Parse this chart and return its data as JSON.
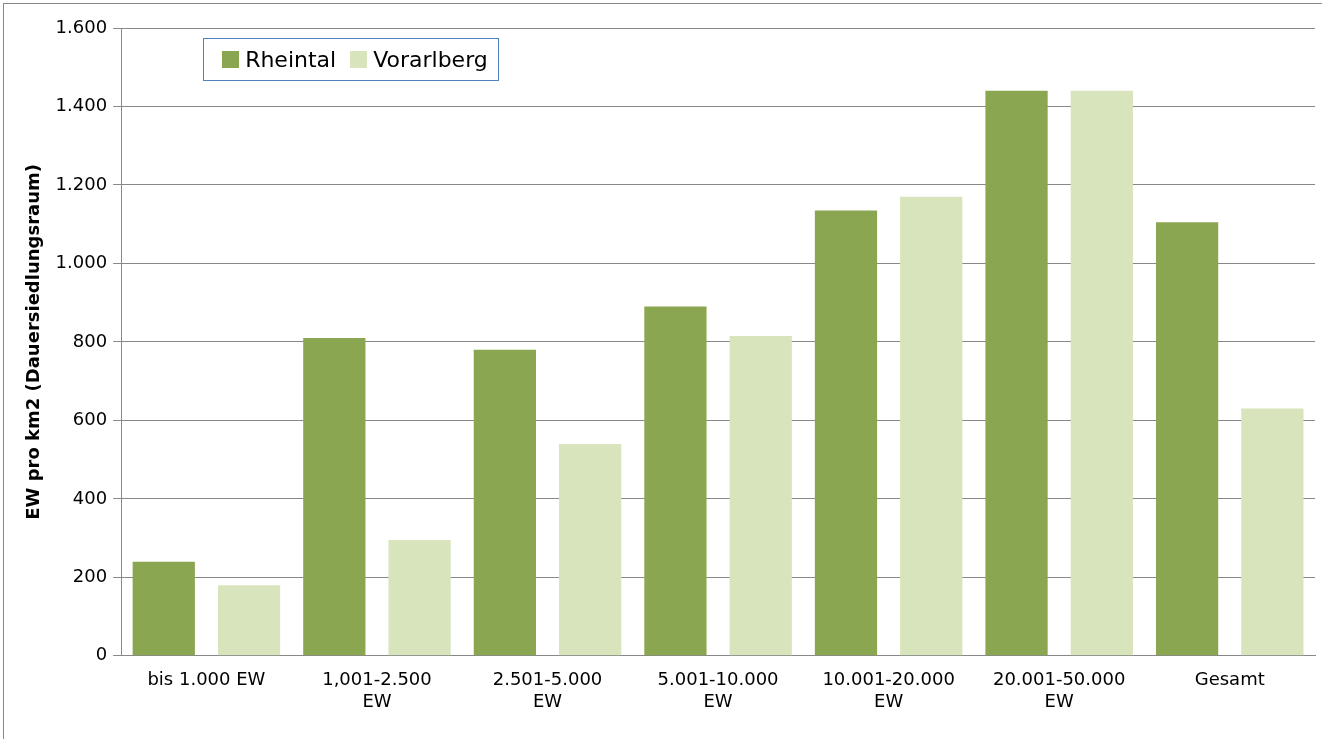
{
  "chart_data": {
    "type": "bar",
    "ylabel": "EW pro km2 (Dauersiedlungsraum)",
    "categories": [
      "bis 1.000 EW",
      "1,001-2.500 EW",
      "2.501-5.000 EW",
      "5.001-10.000 EW",
      "10.001-20.000 EW",
      "20.001-50.000 EW",
      "Gesamt"
    ],
    "series": [
      {
        "name": "Rheintal",
        "color": "#8aa650",
        "values": [
          240,
          810,
          780,
          890,
          1135,
          1440,
          1105
        ]
      },
      {
        "name": "Vorarlberg",
        "color": "#d8e4bc",
        "values": [
          180,
          295,
          540,
          815,
          1170,
          1440,
          630
        ]
      }
    ],
    "ylim": [
      0,
      1600
    ],
    "yticks": [
      0,
      200,
      400,
      600,
      800,
      {
        "value": 1000,
        "label": "1.000"
      },
      {
        "value": 1200,
        "label": "1.200"
      },
      {
        "value": 1400,
        "label": "1.400"
      },
      {
        "value": 1600,
        "label": "1.600"
      }
    ],
    "grid": "y",
    "legend": "top left"
  }
}
